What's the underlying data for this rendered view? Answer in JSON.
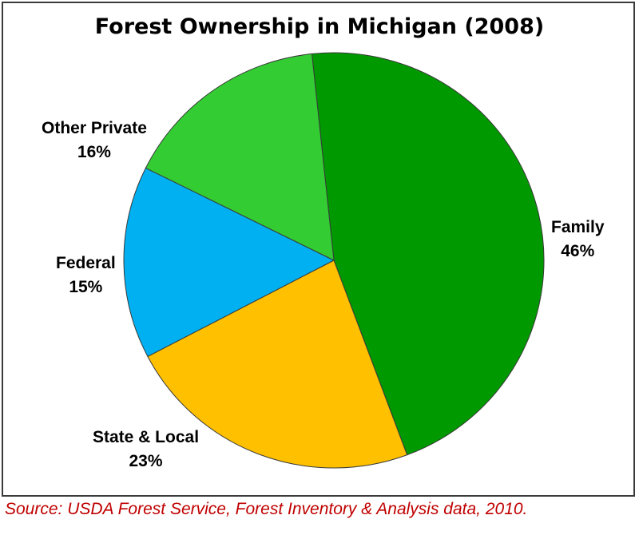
{
  "chart_data": {
    "type": "pie",
    "title": "Forest Ownership in Michigan (2008)",
    "slices": [
      {
        "label": "Family",
        "value": 46,
        "value_label": "46%",
        "color": "#009900"
      },
      {
        "label": "State & Local",
        "value": 23,
        "value_label": "23%",
        "color": "#ffc000"
      },
      {
        "label": "Federal",
        "value": 15,
        "value_label": "15%",
        "color": "#00b0f0"
      },
      {
        "label": "Other Private",
        "value": 16,
        "value_label": "16%",
        "color": "#33cc33"
      }
    ],
    "legend": "none"
  },
  "source": "Source:  USDA Forest Service, Forest Inventory & Analysis data, 2010."
}
